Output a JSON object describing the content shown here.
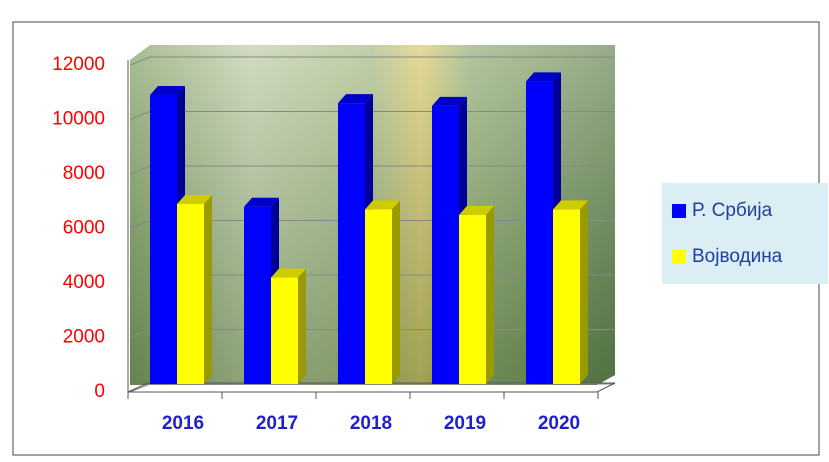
{
  "chart_data": {
    "type": "bar3d",
    "categories": [
      "2016",
      "2017",
      "2018",
      "2019",
      "2020"
    ],
    "series": [
      {
        "name": "Р. Србија",
        "color": "#0000ff",
        "values": [
          10900,
          6800,
          10600,
          10500,
          11400
        ]
      },
      {
        "name": "Војводина",
        "color": "#ffff00",
        "values": [
          6900,
          4200,
          6700,
          6500,
          6700
        ]
      }
    ],
    "ylim": [
      0,
      12000
    ],
    "yticks": [
      0,
      2000,
      4000,
      6000,
      8000,
      10000,
      12000
    ],
    "grid": true,
    "legend": "right"
  }
}
